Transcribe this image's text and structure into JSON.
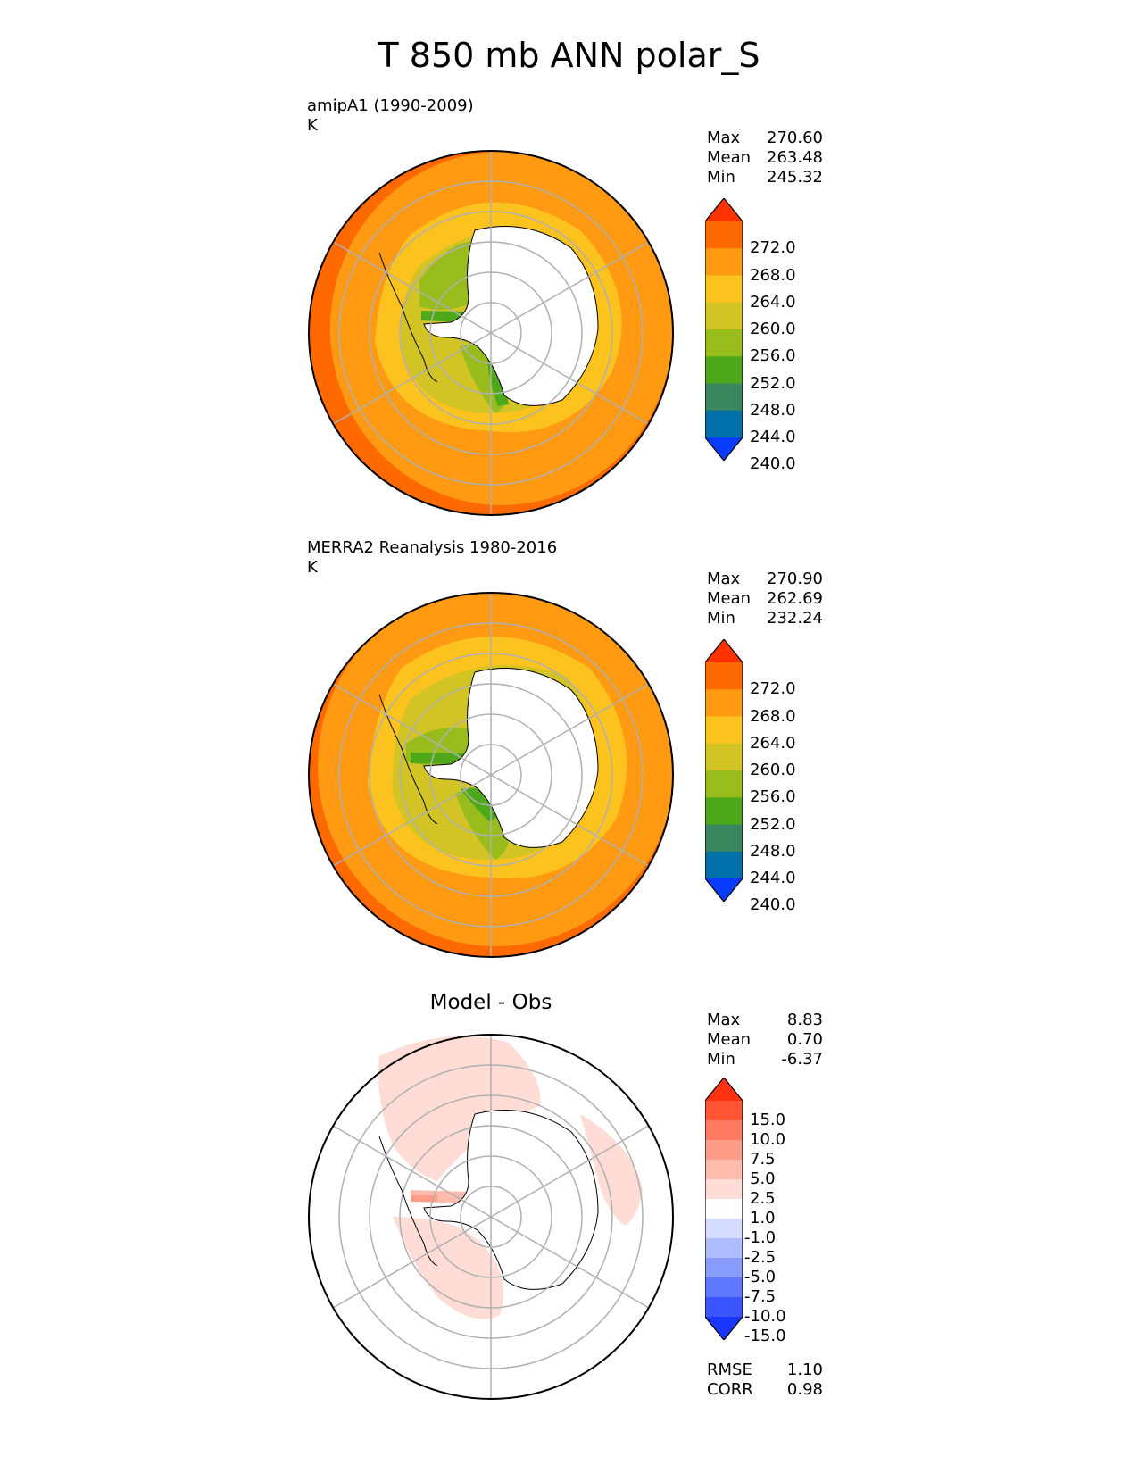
{
  "title": "T 850 mb ANN polar_S",
  "panels": [
    {
      "title_line1": "amipA1 (1990-2009)",
      "title_line2": "K",
      "stats": [
        {
          "label": "Max",
          "value": "270.60"
        },
        {
          "label": "Mean",
          "value": "263.48"
        },
        {
          "label": "Min",
          "value": "245.32"
        }
      ]
    },
    {
      "title_line1": "MERRA2 Reanalysis 1980-2016",
      "title_line2": "K",
      "stats": [
        {
          "label": "Max",
          "value": "270.90"
        },
        {
          "label": "Mean",
          "value": "262.69"
        },
        {
          "label": "Min",
          "value": "232.24"
        }
      ]
    },
    {
      "title": "Model - Obs",
      "stats": [
        {
          "label": "Max",
          "value": "8.83"
        },
        {
          "label": "Mean",
          "value": "0.70"
        },
        {
          "label": "Min",
          "value": "-6.37"
        }
      ],
      "metrics": [
        {
          "label": "RMSE",
          "value": "1.10"
        },
        {
          "label": "CORR",
          "value": "0.98"
        }
      ]
    }
  ],
  "colorbar_temp": {
    "labels": [
      "272.0",
      "268.0",
      "264.0",
      "260.0",
      "256.0",
      "252.0",
      "248.0",
      "244.0",
      "240.0"
    ],
    "colors": [
      "#ff3300",
      "#ff6a00",
      "#ff9a12",
      "#fcc21e",
      "#d2c424",
      "#97bc1c",
      "#4ea91a",
      "#38875f",
      "#0070a8",
      "#0a3cff"
    ]
  },
  "colorbar_diff": {
    "labels": [
      "15.0",
      "10.0",
      "7.5",
      "5.0",
      "2.5",
      "1.0",
      "-1.0",
      "-2.5",
      "-5.0",
      "-7.5",
      "-10.0",
      "-15.0"
    ],
    "colors": [
      "#ff3311",
      "#ff5533",
      "#ff7a60",
      "#ff9c88",
      "#ffbcad",
      "#ffdcd5",
      "#fefefe",
      "#d4dcff",
      "#afbdff",
      "#889bff",
      "#6078ff",
      "#3a55ff",
      "#1a35ff"
    ]
  }
}
